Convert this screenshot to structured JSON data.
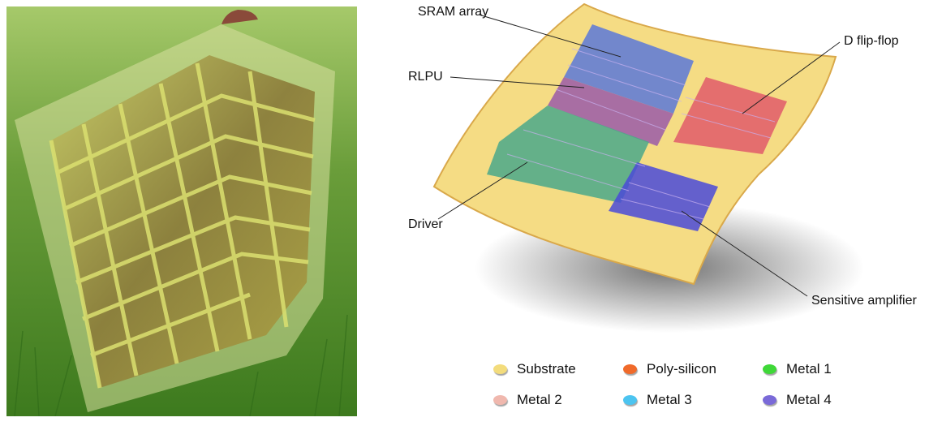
{
  "labels": {
    "sram": "SRAM array",
    "rlpu": "RLPU",
    "driver": "Driver",
    "dff": "D flip-flop",
    "amp": "Sensitive amplifier"
  },
  "legend": [
    {
      "label": "Substrate",
      "color": "#f3dc7c"
    },
    {
      "label": "Poly-silicon",
      "color": "#f06a2a"
    },
    {
      "label": "Metal 1",
      "color": "#3fd838"
    },
    {
      "label": "Metal 2",
      "color": "#f0b8ae"
    },
    {
      "label": "Metal 3",
      "color": "#4cc4f0"
    },
    {
      "label": "Metal 4",
      "color": "#7a6ad8"
    }
  ]
}
